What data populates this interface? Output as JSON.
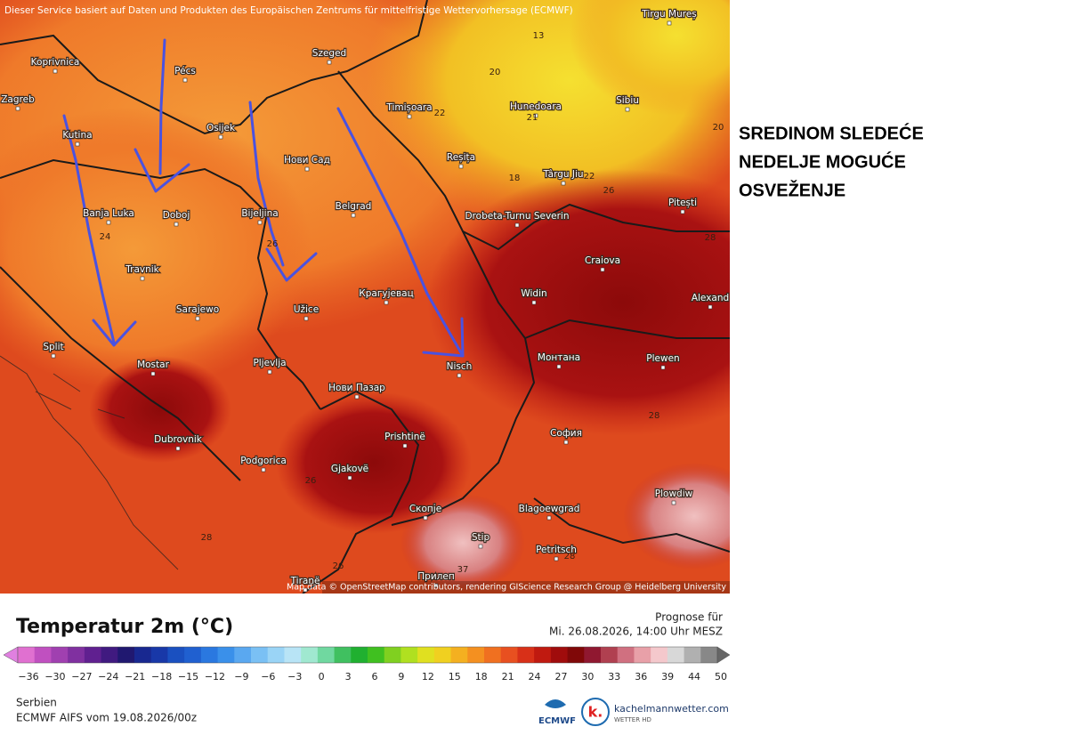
{
  "header": {
    "source_note": "Dieser Service basiert auf Daten und Produkten des Europäischen Zentrums für mittelfristige Wettervorhersage (ECMWF)"
  },
  "map": {
    "cities": [
      "Tirgu Mureș",
      "Koprivnica",
      "Pécs",
      "Szeged",
      "Zagreb",
      "Kutina",
      "Osijek",
      "Timișoara",
      "Hunedoara",
      "Sibiu",
      "Нови Сад",
      "Reșița",
      "Târgu Jiu",
      "Banja Luka",
      "Doboj",
      "Bijeljina",
      "Belgrad",
      "Drobeta-Turnu Severin",
      "Pitești",
      "Craiova",
      "Travnik",
      "Крагујевац",
      "Widin",
      "Alexand",
      "Sarajewo",
      "Užice",
      "Split",
      "Mostar",
      "Pljevlja",
      "Nisch",
      "Монтана",
      "Plewen",
      "Нови Пазар",
      "Dubrovnik",
      "Prishtinë",
      "София",
      "Podgorica",
      "Gjakovë",
      "Plowdiw",
      "Скопје",
      "Blagoewgrad",
      "Stip",
      "Petritsch",
      "Прилеп",
      "Tiranë"
    ],
    "contour_labels": [
      "13",
      "20",
      "22",
      "21",
      "18",
      "22",
      "26",
      "20",
      "24",
      "26",
      "28",
      "28",
      "26",
      "28",
      "26",
      "28",
      "37"
    ],
    "attribution": "Map data © OpenStreetMap contributors, rendering GIScience Research Group @ Heidelberg University"
  },
  "annotation": {
    "lines": [
      "SREDINOM SLEDEĆE",
      "NEDELJE MOGUĆE",
      "OSVEŽENJE"
    ]
  },
  "legend": {
    "title": "Temperatur 2m (°C)",
    "ticks": [
      "−36",
      "−30",
      "−27",
      "−24",
      "−21",
      "−18",
      "−15",
      "−12",
      "−9",
      "−6",
      "−3",
      "0",
      "3",
      "6",
      "9",
      "12",
      "15",
      "18",
      "21",
      "24",
      "27",
      "30",
      "33",
      "36",
      "39",
      "44",
      "50"
    ]
  },
  "forecast": {
    "label": "Prognose für",
    "time": "Mi. 26.08.2026, 14:00 Uhr MESZ"
  },
  "footer": {
    "region": "Serbien",
    "model": "ECMWF AIFS vom 19.08.2026/00z",
    "ecmwf_logo": "ECMWF",
    "brand": "kachelmannwetter.com",
    "brand_sub": "WETTER HD"
  }
}
